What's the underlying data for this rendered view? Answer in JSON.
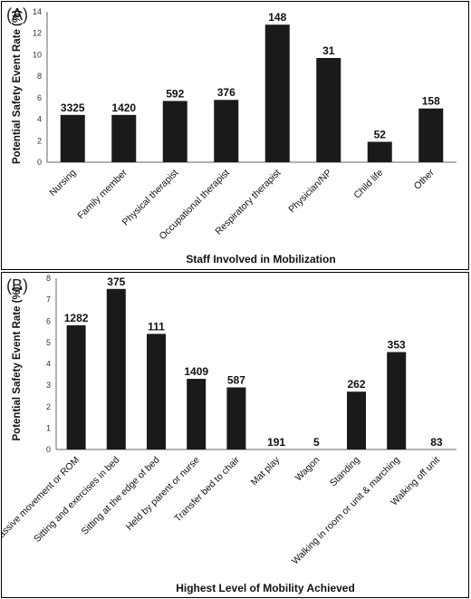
{
  "chart_data": [
    {
      "type": "bar",
      "panel_label": "(A)",
      "xlabel": "Staff Involved in Mobilization",
      "ylabel": "Potential Safety Event Rate (%)",
      "ylim": [
        0,
        14
      ],
      "yticks": [
        0,
        2,
        4,
        6,
        8,
        10,
        12,
        14
      ],
      "grid": false,
      "categories": [
        "Nursing",
        "Family member",
        "Physical therapist",
        "Occupational therapist",
        "Respiratory therapist",
        "Physician/NP",
        "Child life",
        "Other"
      ],
      "values": [
        4.4,
        4.4,
        5.7,
        5.8,
        12.8,
        9.7,
        1.9,
        5.0
      ],
      "data_labels": [
        "3325",
        "1420",
        "592",
        "376",
        "148",
        "31",
        "52",
        "158"
      ],
      "bar_color": "#1a1a1a"
    },
    {
      "type": "bar",
      "panel_label": "(B)",
      "xlabel": "Highest Level of Mobility Achieved",
      "ylabel": "Potential Safety Event Rate (%)",
      "ylim": [
        0,
        8
      ],
      "yticks": [
        0,
        1,
        2,
        3,
        4,
        5,
        6,
        7,
        8
      ],
      "grid": false,
      "categories": [
        "Passive movement or ROM",
        "Sitting and exercises in bed",
        "Sitting at the edge of bed",
        "Held by parent or nurse",
        "Transfer bed to chair",
        "Mat play",
        "Wagon",
        "Standing",
        "Walking in room or unit & marching",
        "Walking off unit"
      ],
      "values": [
        5.8,
        7.5,
        5.4,
        3.3,
        2.9,
        0,
        0,
        2.7,
        4.55,
        0
      ],
      "data_labels": [
        "1282",
        "375",
        "111",
        "1409",
        "587",
        "191",
        "5",
        "262",
        "353",
        "83"
      ],
      "bar_color": "#1a1a1a"
    }
  ]
}
